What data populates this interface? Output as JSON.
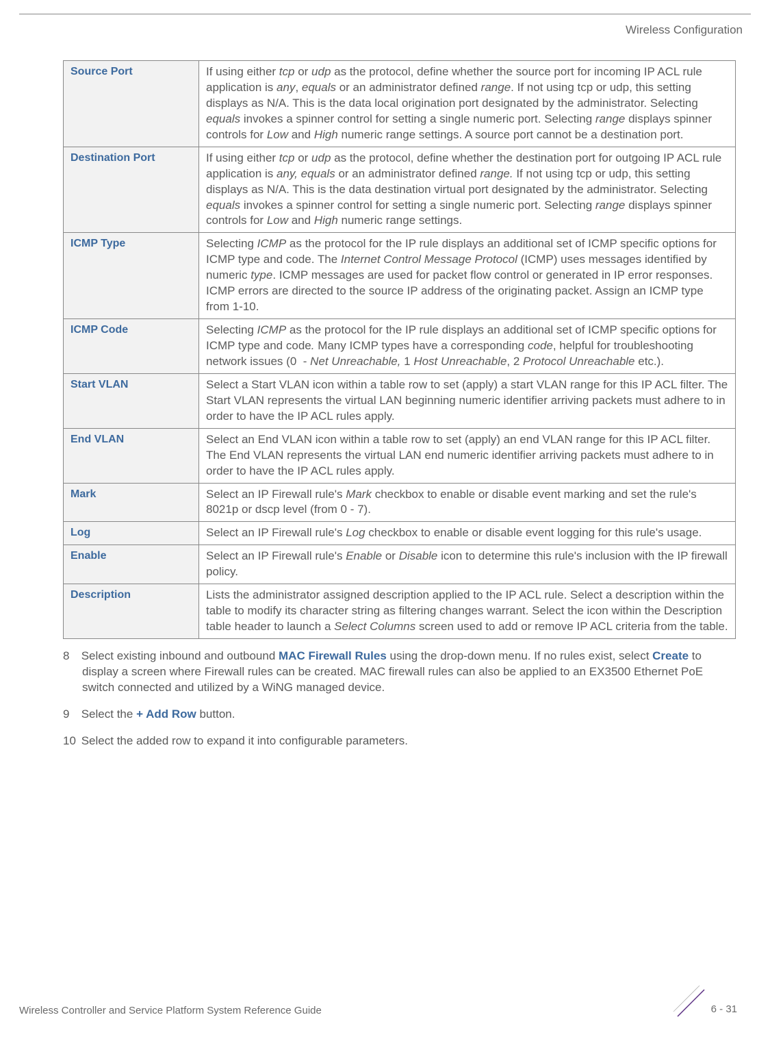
{
  "header": {
    "section_title": "Wireless Configuration"
  },
  "table": {
    "rows": [
      {
        "label": "Source Port",
        "desc_html": "If using either <span class=\"italic\">tcp</span> or <span class=\"italic\">udp</span> as the protocol, define whether the source port for incoming IP ACL rule application is <span class=\"italic\">any</span>, <span class=\"italic\">equals</span> or an administrator defined <span class=\"italic\">range</span>. If not using tcp or udp, this setting displays as N/A. This is the data local origination port designated by the administrator. Selecting <span class=\"italic\">equals</span> invokes a spinner control for setting a single numeric port. Selecting <span class=\"italic\">range</span> displays spinner controls for <span class=\"italic\">Low</span> and <span class=\"italic\">High</span> numeric range settings. A source port cannot be a destination port."
      },
      {
        "label": "Destination Port",
        "desc_html": "If using either <span class=\"italic\">tcp</span> or <span class=\"italic\">udp</span> as the protocol, define whether the destination port for outgoing IP ACL rule application is <span class=\"italic\">any, equals</span> or an administrator defined <span class=\"italic\">range.</span> If not using tcp or udp, this setting displays as N/A. This is the data destination virtual port designated by the administrator. Selecting <span class=\"italic\">equals</span> invokes a spinner control for setting a single numeric port. Selecting <span class=\"italic\">range</span> displays spinner controls for <span class=\"italic\">Low</span> and <span class=\"italic\">High</span> numeric range settings."
      },
      {
        "label": "ICMP Type",
        "desc_html": "Selecting <span class=\"italic\">ICMP</span> as the protocol for the IP rule displays an additional set of ICMP specific options for ICMP type and code. The <span class=\"italic\">Internet Control Message Protocol</span> (ICMP) uses messages identified by numeric <span class=\"italic\">type</span>. ICMP messages are used for packet flow control or generated in IP error responses. ICMP errors are directed to the source IP address of the originating packet. Assign an ICMP type from 1-10."
      },
      {
        "label": "ICMP Code",
        "desc_html": "Selecting <span class=\"italic\">ICMP</span> as the protocol for the IP rule displays an additional set of ICMP specific options for ICMP type and code<span class=\"italic\">.</span> Many ICMP types have a corresponding <span class=\"italic\">code</span>, helpful for troubleshooting network issues (0&nbsp;&nbsp;- <span class=\"italic\">Net Unreachable,</span> 1 <span class=\"italic\">Host Unreachable</span>, 2 <span class=\"italic\">Protocol Unreachable</span> etc.)."
      },
      {
        "label": "Start VLAN",
        "desc_html": "Select a Start VLAN icon within a table row to set (apply) a start VLAN range for this IP ACL filter. The Start VLAN represents the virtual LAN beginning numeric identifier arriving packets must adhere to in order to have the IP ACL rules apply."
      },
      {
        "label": "End VLAN",
        "desc_html": "Select an End VLAN icon within a table row to set (apply) an end VLAN range for this IP ACL filter. The End VLAN represents the virtual LAN end numeric identifier arriving packets must adhere to in order to have the IP ACL rules apply."
      },
      {
        "label": "Mark",
        "desc_html": "Select an IP Firewall rule's <span class=\"italic\">Mark</span> checkbox to enable or disable event marking and set the rule's 8021p or dscp level (from 0 - 7)."
      },
      {
        "label": "Log",
        "desc_html": "Select an IP Firewall rule's <span class=\"italic\">Log</span> checkbox to enable or disable event logging for this rule's usage."
      },
      {
        "label": "Enable",
        "desc_html": "Select an IP Firewall rule's <span class=\"italic\">Enable</span> or <span class=\"italic\">Disable</span> icon to determine this rule's inclusion with the IP firewall policy."
      },
      {
        "label": "Description",
        "desc_html": "Lists the administrator assigned description applied to the IP ACL rule. Select a description within the table to modify its character string as filtering changes warrant. Select the icon within the Description table header to launch a <span class=\"italic\">Select Columns</span> screen used to add or remove IP ACL criteria from the table."
      }
    ]
  },
  "steps": [
    {
      "num": "8",
      "html": "Select existing inbound and outbound <span class=\"bold-blue\">MAC Firewall Rules</span> using the drop-down menu. If no rules exist, select <span class=\"bold-blue\">Create</span> to display a screen where Firewall rules can be created. MAC firewall rules can also be applied to an EX3500 Ethernet PoE switch connected and utilized by a WiNG managed device."
    },
    {
      "num": "9",
      "html": "Select the <span class=\"bold-blue\">+ Add Row</span> button."
    },
    {
      "num": "10",
      "html": "Select the added row to expand it into configurable parameters."
    }
  ],
  "footer": {
    "left": "Wireless Controller and Service Platform System Reference Guide",
    "right": "6 - 31"
  },
  "colors": {
    "label_bg": "#f2f2f2",
    "label_fg": "#3d6a9e",
    "text": "#5a5a5a",
    "border": "#888888"
  }
}
